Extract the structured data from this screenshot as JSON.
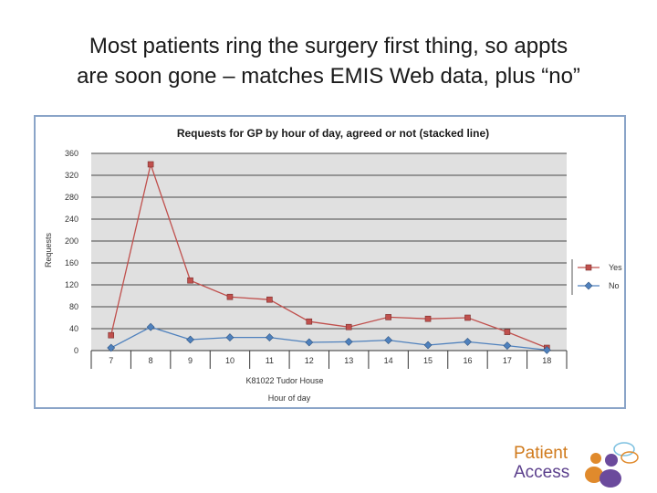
{
  "slide": {
    "title_line1": "Most patients ring the surgery first thing, so appts",
    "title_line2": "are soon gone – matches EMIS Web data, plus “no”"
  },
  "chart_data": {
    "type": "line",
    "title": "Requests for GP by hour of day, agreed or not (stacked line)",
    "xlabel": "Hour of day",
    "subtitle": "K81022 Tudor House",
    "ylabel": "Requests",
    "categories": [
      "7",
      "8",
      "9",
      "10",
      "11",
      "12",
      "13",
      "14",
      "15",
      "16",
      "17",
      "18"
    ],
    "ylim": [
      0,
      360
    ],
    "yticks": [
      0,
      40,
      80,
      120,
      160,
      200,
      240,
      280,
      320,
      360
    ],
    "series": [
      {
        "name": "Yes",
        "color": "#c0504d",
        "values": [
          28,
          340,
          128,
          98,
          93,
          53,
          43,
          61,
          58,
          60,
          34,
          5
        ]
      },
      {
        "name": "No",
        "color": "#4f81bd",
        "values": [
          5,
          43,
          20,
          24,
          24,
          15,
          16,
          19,
          10,
          16,
          9,
          1
        ]
      }
    ],
    "legend_position": "right"
  },
  "logo": {
    "line1": "Patient",
    "line2": "Access"
  },
  "colors": {
    "frame": "#8aa4c8",
    "plot_bg": "#e0e0e0",
    "logo_orange": "#e08a2c",
    "logo_purple": "#6b4a9c",
    "logo_blue": "#7cc0e0"
  }
}
